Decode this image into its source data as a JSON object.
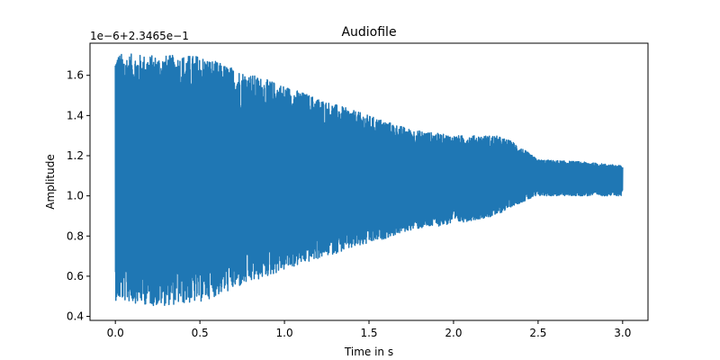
{
  "chart_data": {
    "type": "line",
    "title": "Audiofile",
    "xlabel": "Time in s",
    "ylabel": "Amplitude",
    "offset_label": "1e−6+2.3465e−1",
    "xlim": [
      -0.15,
      3.15
    ],
    "ylim": [
      0.38,
      1.76
    ],
    "xticks": [
      0.0,
      0.5,
      1.0,
      1.5,
      2.0,
      2.5,
      3.0
    ],
    "xtick_labels": [
      "0.0",
      "0.5",
      "1.0",
      "1.5",
      "2.0",
      "2.5",
      "3.0"
    ],
    "yticks": [
      0.4,
      0.6,
      0.8,
      1.0,
      1.2,
      1.4,
      1.6
    ],
    "ytick_labels": [
      "0.4",
      "0.6",
      "0.8",
      "1.0",
      "1.2",
      "1.4",
      "1.6"
    ],
    "grid": false,
    "series": [
      {
        "color": "#1f77b4",
        "envelope": {
          "x": [
            0.0,
            0.25,
            0.5,
            0.75,
            1.0,
            1.25,
            1.5,
            1.75,
            2.0,
            2.25,
            2.35,
            2.5,
            2.75,
            3.0
          ],
          "upper": [
            1.71,
            1.7,
            1.7,
            1.62,
            1.55,
            1.47,
            1.4,
            1.33,
            1.3,
            1.3,
            1.27,
            1.18,
            1.17,
            1.15
          ],
          "lower": [
            0.48,
            0.45,
            0.47,
            0.55,
            0.63,
            0.7,
            0.76,
            0.83,
            0.86,
            0.9,
            0.95,
            1.0,
            1.0,
            1.0
          ],
          "center": 1.1
        }
      }
    ]
  }
}
